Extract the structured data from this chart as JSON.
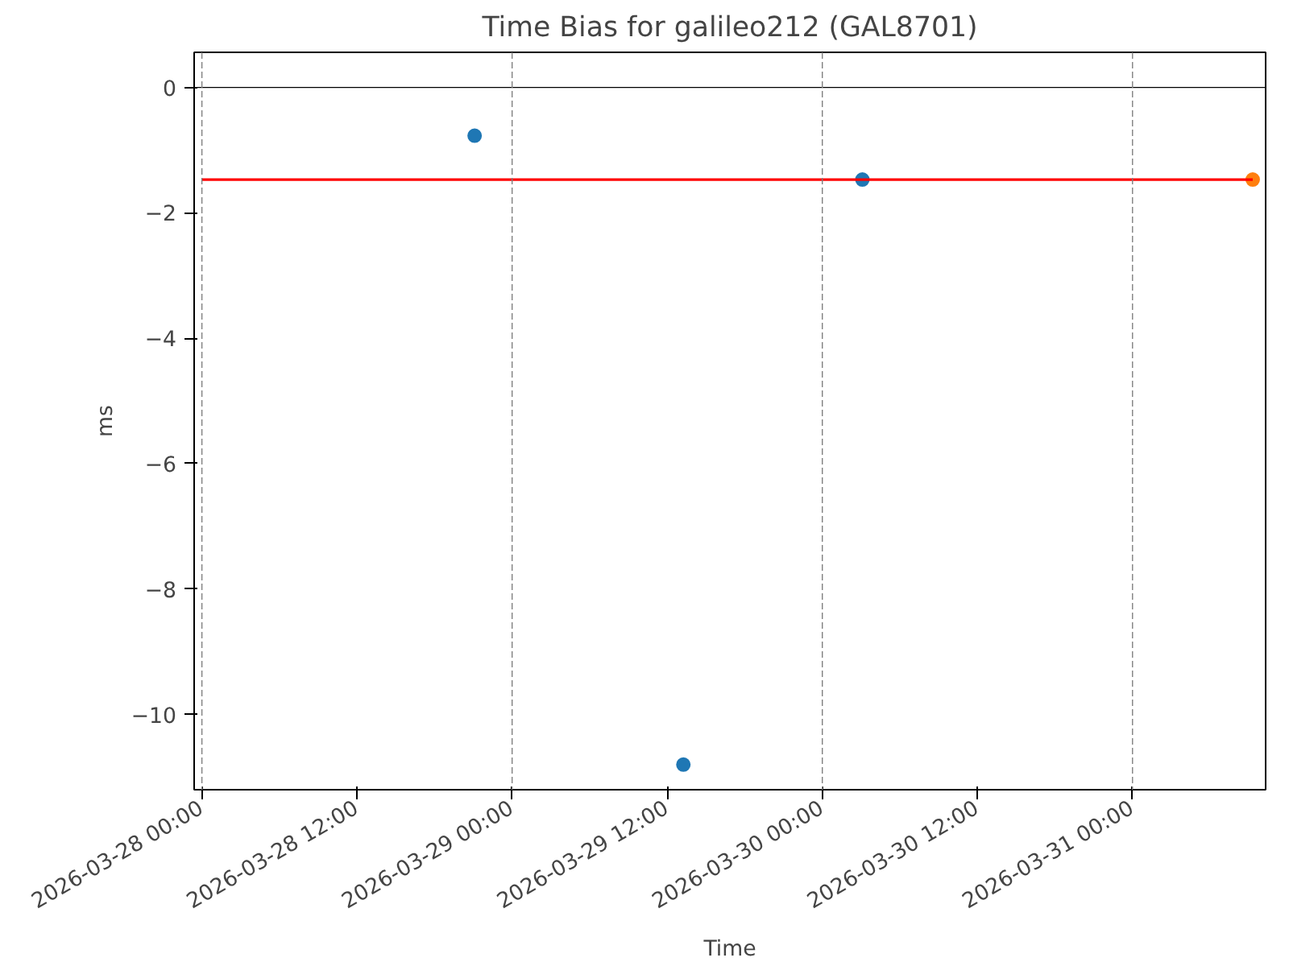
{
  "chart_data": {
    "type": "scatter",
    "title": "Time Bias for galileo212 (GAL8701)",
    "xlabel": "Time",
    "ylabel": "ms",
    "series": [
      {
        "color": "#1f77b4",
        "x": [
          "2026-03-28T21:06",
          "2026-03-29T13:15",
          "2026-03-30T03:06"
        ],
        "values": [
          -0.77,
          -10.8,
          -1.47
        ]
      },
      {
        "color": "#ff7f0e",
        "x": [
          "2026-03-31T09:18"
        ],
        "values": [
          -1.47
        ]
      },
      {
        "type": "line",
        "marker": "none",
        "color": "#ff0000",
        "x": [
          "2026-03-28T00:00",
          "2026-03-31T09:18"
        ],
        "values": [
          -1.47,
          -1.47
        ]
      }
    ],
    "marker": "circle",
    "xlim": [
      "2026-03-27T23:24",
      "2026-03-31T10:18"
    ],
    "ylim": [
      -11.2,
      0.56
    ],
    "xticks": [
      {
        "value": "2026-03-28T00:00",
        "label": "2026-03-28 00:00"
      },
      {
        "value": "2026-03-28T12:00",
        "label": "2026-03-28 12:00"
      },
      {
        "value": "2026-03-29T00:00",
        "label": "2026-03-29 00:00"
      },
      {
        "value": "2026-03-29T12:00",
        "label": "2026-03-29 12:00"
      },
      {
        "value": "2026-03-30T00:00",
        "label": "2026-03-30 00:00"
      },
      {
        "value": "2026-03-30T12:00",
        "label": "2026-03-30 12:00"
      },
      {
        "value": "2026-03-31T00:00",
        "label": "2026-03-31 00:00"
      }
    ],
    "yticks": [
      0,
      -2,
      -4,
      -6,
      -8,
      -10
    ],
    "ref_lines": [
      {
        "axis": "y",
        "value": 0,
        "color": "#000000",
        "line_style": "solid"
      },
      {
        "axis": "x",
        "value": "2026-03-28T00:00",
        "color": "#808080",
        "line_style": "dashed"
      },
      {
        "axis": "x",
        "value": "2026-03-29T00:00",
        "color": "#808080",
        "line_style": "dashed"
      },
      {
        "axis": "x",
        "value": "2026-03-30T00:00",
        "color": "#808080",
        "line_style": "dashed"
      },
      {
        "axis": "x",
        "value": "2026-03-31T00:00",
        "color": "#808080",
        "line_style": "dashed"
      }
    ],
    "grid": false
  }
}
